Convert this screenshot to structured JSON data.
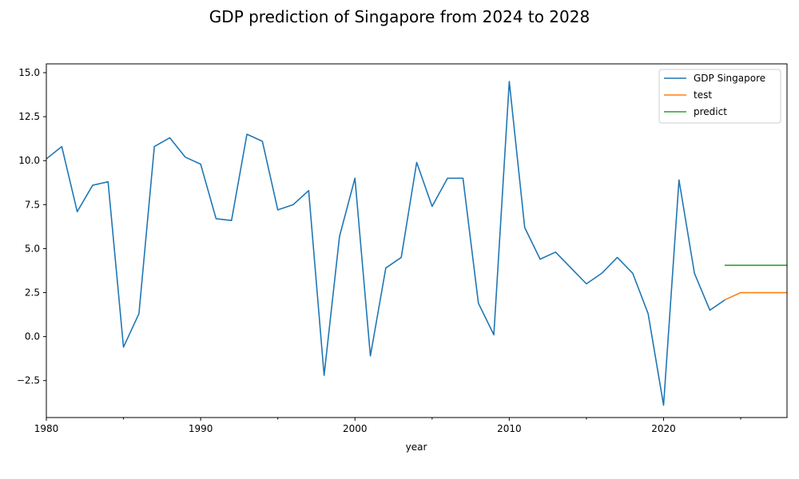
{
  "chart_data": {
    "type": "line",
    "title": "GDP prediction of Singapore from 2024 to 2028",
    "xlabel": "year",
    "ylabel": "",
    "xlim": [
      1980,
      2028
    ],
    "ylim": [
      -4.6,
      15.5
    ],
    "xticks": [
      1980,
      1990,
      2000,
      2010,
      2020
    ],
    "xticks_minor": [
      1985,
      1995,
      2005,
      2015,
      2025
    ],
    "yticks": [
      -2.5,
      0.0,
      2.5,
      5.0,
      7.5,
      10.0,
      12.5,
      15.0
    ],
    "ytick_labels": [
      "−2.5",
      "0.0",
      "2.5",
      "5.0",
      "7.5",
      "10.0",
      "12.5",
      "15.0"
    ],
    "grid": false,
    "legend_position": "top-right",
    "series": [
      {
        "name": "GDP Singapore",
        "color": "#1f77b4",
        "x": [
          1980,
          1981,
          1982,
          1983,
          1984,
          1985,
          1986,
          1987,
          1988,
          1989,
          1990,
          1991,
          1992,
          1993,
          1994,
          1995,
          1996,
          1997,
          1998,
          1999,
          2000,
          2001,
          2002,
          2003,
          2004,
          2005,
          2006,
          2007,
          2008,
          2009,
          2010,
          2011,
          2012,
          2013,
          2014,
          2015,
          2016,
          2017,
          2018,
          2019,
          2020,
          2021,
          2022,
          2023,
          2024
        ],
        "y": [
          10.1,
          10.8,
          7.1,
          8.6,
          8.8,
          -0.6,
          1.3,
          10.8,
          11.3,
          10.2,
          9.8,
          6.7,
          6.6,
          11.5,
          11.1,
          7.2,
          7.5,
          8.3,
          -2.2,
          5.7,
          9.0,
          -1.1,
          3.9,
          4.5,
          9.9,
          7.4,
          9.0,
          9.0,
          1.9,
          0.1,
          14.5,
          6.2,
          4.4,
          4.8,
          3.9,
          3.0,
          3.6,
          4.5,
          3.6,
          1.3,
          -3.9,
          8.9,
          3.6,
          1.5,
          2.1
        ]
      },
      {
        "name": "test",
        "color": "#ff7f0e",
        "x": [
          2024,
          2025,
          2026,
          2027,
          2028
        ],
        "y": [
          2.1,
          2.5,
          2.5,
          2.5,
          2.5
        ]
      },
      {
        "name": "predict",
        "color": "#2ca02c",
        "x": [
          2024,
          2025,
          2026,
          2027,
          2028
        ],
        "y": [
          4.05,
          4.05,
          4.05,
          4.05,
          4.05
        ]
      }
    ]
  }
}
